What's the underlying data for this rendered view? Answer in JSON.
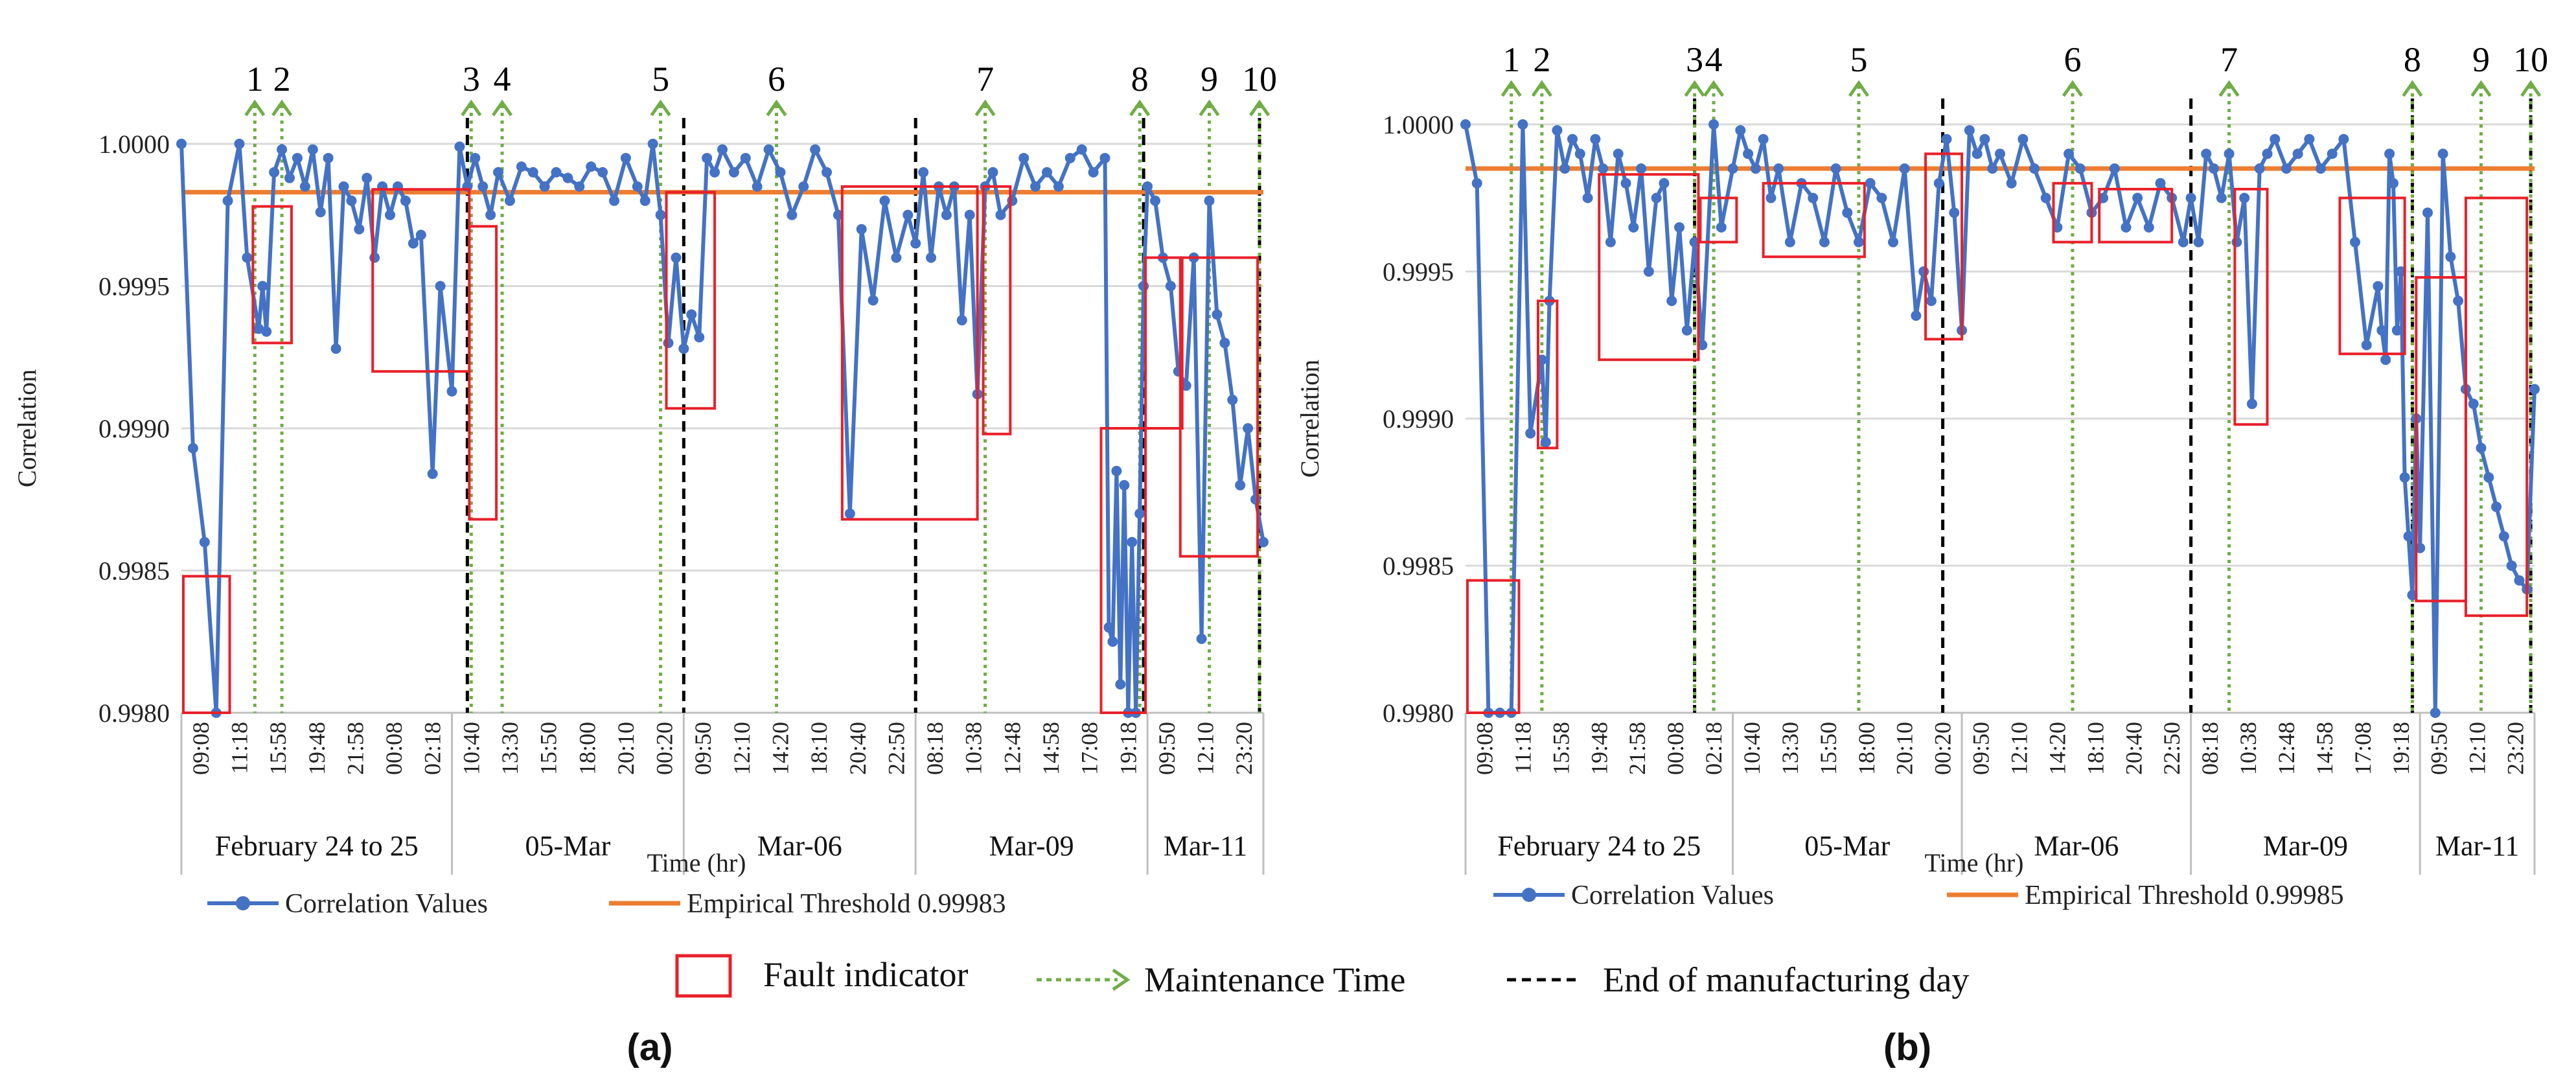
{
  "figure_labels": {
    "a": "(a)",
    "b": "(b)"
  },
  "legend": {
    "fault": "Fault indicator",
    "maintenance": "Maintenance Time",
    "eod": "End of manufacturing day"
  },
  "colors": {
    "series": "#4472C4",
    "threshold": "#ED7D31",
    "fault": "#E8202A",
    "maintenance": "#70AD47",
    "eod": "#000000",
    "grid": "#d9d9d9"
  },
  "chart_data": [
    {
      "type": "line",
      "panel": "(a)",
      "xlabel": "Time (hr)",
      "ylabel": "Correlation",
      "ylim": [
        0.998,
        1.0
      ],
      "yticks": [
        "0.9980",
        "0.9985",
        "0.9990",
        "0.9995",
        "1.0000"
      ],
      "xticks": [
        "09:08",
        "11:18",
        "15:58",
        "19:48",
        "21:58",
        "00:08",
        "02:18",
        "10:40",
        "13:30",
        "15:50",
        "18:00",
        "20:10",
        "00:20",
        "09:50",
        "12:10",
        "14:20",
        "18:10",
        "20:40",
        "22:50",
        "08:18",
        "10:38",
        "12:48",
        "14:58",
        "17:08",
        "19:18",
        "09:50",
        "12:10",
        "23:20"
      ],
      "groups": [
        {
          "label": "February 24 to 25",
          "from": 0,
          "to": 7
        },
        {
          "label": "05-Mar",
          "from": 7,
          "to": 13
        },
        {
          "label": "Mar-06",
          "from": 13,
          "to": 19
        },
        {
          "label": "Mar-09",
          "from": 19,
          "to": 25
        },
        {
          "label": "Mar-11",
          "from": 25,
          "to": 28
        }
      ],
      "series": [
        {
          "name": "Correlation Values",
          "x": [
            0.0,
            0.3,
            0.6,
            0.9,
            1.2,
            1.5,
            1.7,
            2.0,
            2.1,
            2.2,
            2.4,
            2.6,
            2.8,
            3.0,
            3.2,
            3.4,
            3.6,
            3.8,
            4.0,
            4.2,
            4.4,
            4.6,
            4.8,
            5.0,
            5.2,
            5.4,
            5.6,
            5.8,
            6.0,
            6.2,
            6.5,
            6.7,
            7.0,
            7.2,
            7.4,
            7.6,
            7.8,
            8.0,
            8.2,
            8.5,
            8.8,
            9.1,
            9.4,
            9.7,
            10.0,
            10.3,
            10.6,
            10.9,
            11.2,
            11.5,
            11.8,
            12.0,
            12.2,
            12.4,
            12.6,
            12.8,
            13.0,
            13.2,
            13.4,
            13.6,
            13.8,
            14.0,
            14.3,
            14.6,
            14.9,
            15.2,
            15.5,
            15.8,
            16.1,
            16.4,
            16.7,
            17.0,
            17.3,
            17.6,
            17.9,
            18.2,
            18.5,
            18.8,
            19.0,
            19.2,
            19.4,
            19.6,
            19.8,
            20.0,
            20.2,
            20.4,
            20.6,
            20.8,
            21.0,
            21.2,
            21.5,
            21.8,
            22.1,
            22.4,
            22.7,
            23.0,
            23.3,
            23.6,
            23.9,
            24.0,
            24.1,
            24.2,
            24.3,
            24.4,
            24.5,
            24.6,
            24.7,
            24.8,
            24.9,
            25.0,
            25.2,
            25.4,
            25.6,
            25.8,
            26.0,
            26.2,
            26.4,
            26.6,
            26.8,
            27.0,
            27.2,
            27.4,
            27.6,
            27.8,
            28.0
          ],
          "y": [
            1.0,
            0.99893,
            0.9986,
            0.998,
            0.9998,
            1.0,
            0.9996,
            0.99935,
            0.9995,
            0.99934,
            0.9999,
            0.99998,
            0.99988,
            0.99995,
            0.99985,
            0.99998,
            0.99976,
            0.99995,
            0.99928,
            0.99985,
            0.9998,
            0.9997,
            0.99988,
            0.9996,
            0.99985,
            0.99975,
            0.99985,
            0.9998,
            0.99965,
            0.99968,
            0.99884,
            0.9995,
            0.99913,
            0.99999,
            0.99985,
            0.99995,
            0.99985,
            0.99975,
            0.9999,
            0.9998,
            0.99992,
            0.9999,
            0.99985,
            0.9999,
            0.99988,
            0.99985,
            0.99992,
            0.9999,
            0.9998,
            0.99995,
            0.99985,
            0.9998,
            1.0,
            0.99975,
            0.9993,
            0.9996,
            0.99928,
            0.9994,
            0.99932,
            0.99995,
            0.9999,
            0.99998,
            0.9999,
            0.99995,
            0.99985,
            0.99998,
            0.9999,
            0.99975,
            0.99985,
            0.99998,
            0.9999,
            0.99975,
            0.9987,
            0.9997,
            0.99945,
            0.9998,
            0.9996,
            0.99975,
            0.99965,
            0.9999,
            0.9996,
            0.99985,
            0.99975,
            0.99985,
            0.99938,
            0.99975,
            0.99912,
            0.99985,
            0.9999,
            0.99975,
            0.9998,
            0.99995,
            0.99985,
            0.9999,
            0.99985,
            0.99995,
            0.99998,
            0.9999,
            0.99995,
            0.9983,
            0.99825,
            0.99885,
            0.9981,
            0.9988,
            0.998,
            0.9986,
            0.998,
            0.9987,
            0.9995,
            0.99985,
            0.9998,
            0.9996,
            0.9995,
            0.9992,
            0.99915,
            0.9996,
            0.99826,
            0.9998,
            0.9994,
            0.9993,
            0.9991,
            0.9988,
            0.999,
            0.99875,
            0.9986
          ]
        },
        {
          "name": "Empirical Threshold 0.99983",
          "value": 0.99983
        }
      ],
      "fault_boxes": [
        [
          0.05,
          1.25,
          0.998,
          0.99848
        ],
        [
          1.85,
          2.85,
          0.9993,
          0.99978
        ],
        [
          4.95,
          7.45,
          0.9992,
          0.99984
        ],
        [
          7.45,
          8.15,
          0.99868,
          0.99971
        ],
        [
          12.55,
          13.8,
          0.99907,
          0.99983
        ],
        [
          17.1,
          20.6,
          0.99868,
          0.99985
        ],
        [
          20.75,
          21.45,
          0.99898,
          0.99985
        ],
        [
          23.8,
          24.95,
          0.998,
          0.999
        ],
        [
          24.95,
          25.9,
          0.999,
          0.9996
        ],
        [
          25.85,
          27.85,
          0.99855,
          0.9996
        ]
      ],
      "maintenance_markers": [
        {
          "label": "1",
          "x": 1.9
        },
        {
          "label": "2",
          "x": 2.6
        },
        {
          "label": "3",
          "x": 7.5
        },
        {
          "label": "4",
          "x": 8.3
        },
        {
          "label": "5",
          "x": 12.4
        },
        {
          "label": "6",
          "x": 15.4
        },
        {
          "label": "7",
          "x": 20.8
        },
        {
          "label": "8",
          "x": 24.8
        },
        {
          "label": "9",
          "x": 26.6
        },
        {
          "label": "10",
          "x": 27.9
        }
      ],
      "eod_lines": [
        7.4,
        13.0,
        19.0,
        24.9,
        27.9
      ]
    },
    {
      "type": "line",
      "panel": "(b)",
      "xlabel": "Time (hr)",
      "ylabel": "Correlation",
      "ylim": [
        0.998,
        1.0
      ],
      "yticks": [
        "0.9980",
        "0.9985",
        "0.9990",
        "0.9995",
        "1.0000"
      ],
      "xticks": [
        "09:08",
        "11:18",
        "15:58",
        "19:48",
        "21:58",
        "00:08",
        "02:18",
        "10:40",
        "13:30",
        "15:50",
        "18:00",
        "20:10",
        "00:20",
        "09:50",
        "12:10",
        "14:20",
        "18:10",
        "20:40",
        "22:50",
        "08:18",
        "10:38",
        "12:48",
        "14:58",
        "17:08",
        "19:18",
        "09:50",
        "12:10",
        "23:20"
      ],
      "groups": [
        {
          "label": "February 24 to 25",
          "from": 0,
          "to": 7
        },
        {
          "label": "05-Mar",
          "from": 7,
          "to": 13
        },
        {
          "label": "Mar-06",
          "from": 13,
          "to": 19
        },
        {
          "label": "Mar-09",
          "from": 19,
          "to": 25
        },
        {
          "label": "Mar-11",
          "from": 25,
          "to": 28
        }
      ],
      "series": [
        {
          "name": "Correlation Values",
          "x": [
            0.0,
            0.3,
            0.6,
            0.9,
            1.2,
            1.5,
            1.7,
            2.0,
            2.1,
            2.2,
            2.4,
            2.6,
            2.8,
            3.0,
            3.2,
            3.4,
            3.6,
            3.8,
            4.0,
            4.2,
            4.4,
            4.6,
            4.8,
            5.0,
            5.2,
            5.4,
            5.6,
            5.8,
            6.0,
            6.2,
            6.5,
            6.7,
            7.0,
            7.2,
            7.4,
            7.6,
            7.8,
            8.0,
            8.2,
            8.5,
            8.8,
            9.1,
            9.4,
            9.7,
            10.0,
            10.3,
            10.6,
            10.9,
            11.2,
            11.5,
            11.8,
            12.0,
            12.2,
            12.4,
            12.6,
            12.8,
            13.0,
            13.2,
            13.4,
            13.6,
            13.8,
            14.0,
            14.3,
            14.6,
            14.9,
            15.2,
            15.5,
            15.8,
            16.1,
            16.4,
            16.7,
            17.0,
            17.3,
            17.6,
            17.9,
            18.2,
            18.5,
            18.8,
            19.0,
            19.2,
            19.4,
            19.6,
            19.8,
            20.0,
            20.2,
            20.4,
            20.6,
            20.8,
            21.0,
            21.2,
            21.5,
            21.8,
            22.1,
            22.4,
            22.7,
            23.0,
            23.3,
            23.6,
            23.9,
            24.0,
            24.1,
            24.2,
            24.3,
            24.4,
            24.5,
            24.6,
            24.7,
            24.8,
            24.9,
            25.0,
            25.2,
            25.4,
            25.6,
            25.8,
            26.0,
            26.2,
            26.4,
            26.6,
            26.8,
            27.0,
            27.2,
            27.4,
            27.6,
            27.8,
            28.0
          ],
          "y": [
            1.0,
            0.9998,
            0.998,
            0.998,
            0.998,
            1.0,
            0.99895,
            0.9992,
            0.99892,
            0.9994,
            0.99998,
            0.99985,
            0.99995,
            0.9999,
            0.99975,
            0.99995,
            0.99985,
            0.9996,
            0.9999,
            0.9998,
            0.99965,
            0.99985,
            0.9995,
            0.99975,
            0.9998,
            0.9994,
            0.99965,
            0.9993,
            0.9996,
            0.99925,
            1.0,
            0.99965,
            0.99985,
            0.99998,
            0.9999,
            0.99985,
            0.99995,
            0.99975,
            0.99985,
            0.9996,
            0.9998,
            0.99975,
            0.9996,
            0.99985,
            0.9997,
            0.9996,
            0.9998,
            0.99975,
            0.9996,
            0.99985,
            0.99935,
            0.9995,
            0.9994,
            0.9998,
            0.99995,
            0.9997,
            0.9993,
            0.99998,
            0.9999,
            0.99995,
            0.99985,
            0.9999,
            0.9998,
            0.99995,
            0.99985,
            0.99975,
            0.99965,
            0.9999,
            0.99985,
            0.9997,
            0.99975,
            0.99985,
            0.99965,
            0.99975,
            0.99965,
            0.9998,
            0.99975,
            0.9996,
            0.99975,
            0.9996,
            0.9999,
            0.99985,
            0.99975,
            0.9999,
            0.9996,
            0.99975,
            0.99905,
            0.99985,
            0.9999,
            0.99995,
            0.99985,
            0.9999,
            0.99995,
            0.99985,
            0.9999,
            0.99995,
            0.9996,
            0.99925,
            0.99945,
            0.9993,
            0.9992,
            0.9999,
            0.9998,
            0.9993,
            0.9995,
            0.9988,
            0.9986,
            0.9984,
            0.999,
            0.99856,
            0.9997,
            0.998,
            0.9999,
            0.99955,
            0.9994,
            0.9991,
            0.99905,
            0.9989,
            0.9988,
            0.9987,
            0.9986,
            0.9985,
            0.99845,
            0.99842,
            0.9991
          ]
        },
        {
          "name": "Empirical Threshold 0.99985",
          "value": 0.99985
        }
      ],
      "fault_boxes": [
        [
          0.05,
          1.4,
          0.998,
          0.99845
        ],
        [
          1.9,
          2.4,
          0.9989,
          0.9994
        ],
        [
          3.5,
          6.1,
          0.9992,
          0.99983
        ],
        [
          6.15,
          7.1,
          0.9996,
          0.99975
        ],
        [
          7.8,
          10.45,
          0.99955,
          0.9998
        ],
        [
          12.05,
          13.0,
          0.99927,
          0.9999
        ],
        [
          15.4,
          16.4,
          0.9996,
          0.9998
        ],
        [
          16.6,
          18.5,
          0.9996,
          0.99978
        ],
        [
          20.15,
          21.0,
          0.99898,
          0.99978
        ],
        [
          22.9,
          24.6,
          0.99922,
          0.99975
        ],
        [
          24.9,
          26.2,
          0.99838,
          0.99948
        ],
        [
          26.2,
          27.8,
          0.99833,
          0.99975
        ]
      ],
      "maintenance_markers": [
        {
          "label": "1",
          "x": 1.2
        },
        {
          "label": "2",
          "x": 2.0
        },
        {
          "label": "3",
          "x": 6.0
        },
        {
          "label": "4",
          "x": 6.5
        },
        {
          "label": "5",
          "x": 10.3
        },
        {
          "label": "6",
          "x": 15.9
        },
        {
          "label": "7",
          "x": 20.0
        },
        {
          "label": "8",
          "x": 24.8
        },
        {
          "label": "9",
          "x": 26.6
        },
        {
          "label": "10",
          "x": 27.9
        }
      ],
      "eod_lines": [
        6.0,
        12.5,
        19.0,
        24.8,
        27.9
      ]
    }
  ]
}
